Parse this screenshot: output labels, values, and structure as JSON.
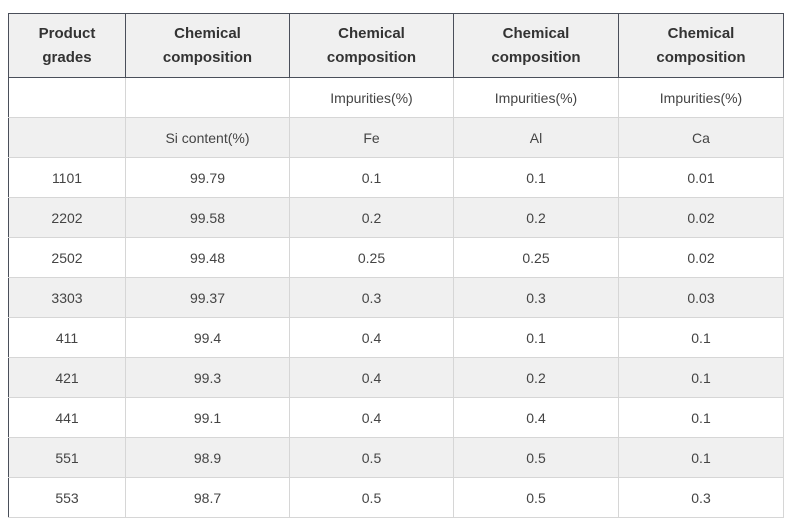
{
  "table": {
    "headers": [
      [
        "Product",
        "grades"
      ],
      [
        "Chemical",
        "composition"
      ],
      [
        "Chemical",
        "composition"
      ],
      [
        "Chemical",
        "composition"
      ],
      [
        "Chemical",
        "composition"
      ]
    ],
    "subheader_1": [
      "",
      "",
      "Impurities(%)",
      "Impurities(%)",
      "Impurities(%)"
    ],
    "subheader_2": [
      "",
      "Si content(%)",
      "Fe",
      "Al",
      "Ca"
    ],
    "rows": [
      [
        "1101",
        "99.79",
        "0.1",
        "0.1",
        "0.01"
      ],
      [
        "2202",
        "99.58",
        "0.2",
        "0.2",
        "0.02"
      ],
      [
        "2502",
        "99.48",
        "0.25",
        "0.25",
        "0.02"
      ],
      [
        "3303",
        "99.37",
        "0.3",
        "0.3",
        "0.03"
      ],
      [
        "411",
        "99.4",
        "0.4",
        "0.1",
        "0.1"
      ],
      [
        "421",
        "99.3",
        "0.4",
        "0.2",
        "0.1"
      ],
      [
        "441",
        "99.1",
        "0.4",
        "0.4",
        "0.1"
      ],
      [
        "551",
        "98.9",
        "0.5",
        "0.5",
        "0.1"
      ],
      [
        "553",
        "98.7",
        "0.5",
        "0.5",
        "0.3"
      ]
    ]
  }
}
